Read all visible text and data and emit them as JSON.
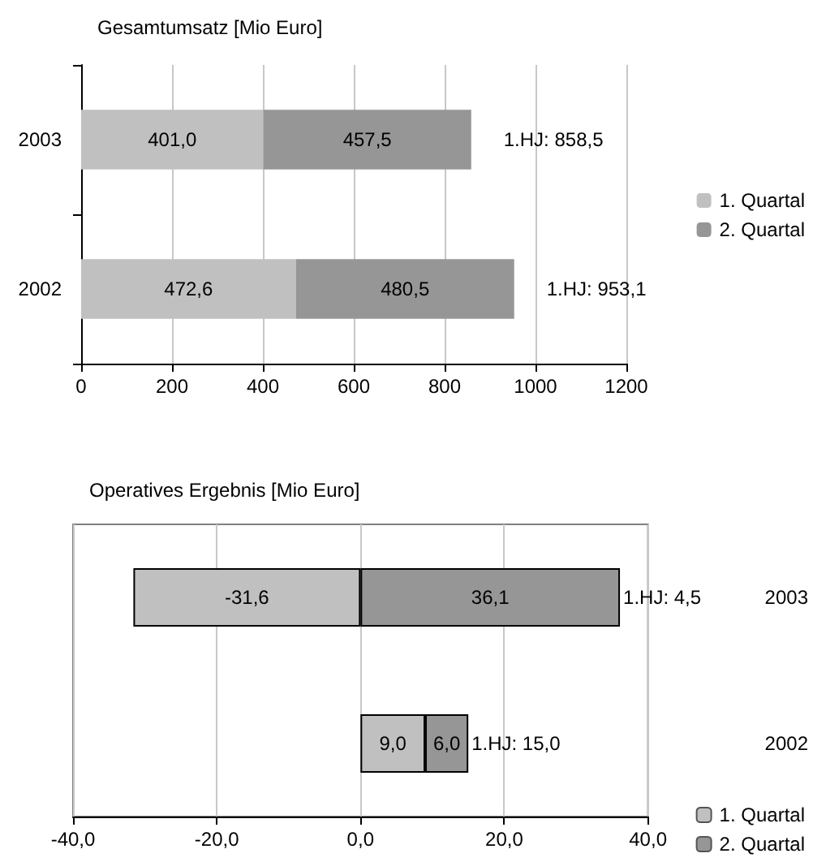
{
  "chart_data": [
    {
      "type": "bar",
      "orientation": "horizontal",
      "stacked": true,
      "title": "Gesamtumsatz [Mio Euro]",
      "categories": [
        "2003",
        "2002"
      ],
      "series": [
        {
          "name": "1. Quartal",
          "color": "#c0c0c0",
          "values": [
            401.0,
            472.6
          ],
          "value_labels": [
            "401,0",
            "472,6"
          ]
        },
        {
          "name": "2. Quartal",
          "color": "#969696",
          "values": [
            457.5,
            480.5
          ],
          "value_labels": [
            "457,5",
            "480,5"
          ]
        }
      ],
      "totals": [
        "1.HJ: 858,5",
        "1.HJ: 953,1"
      ],
      "xlim": [
        0,
        1200
      ],
      "xticks": [
        0,
        200,
        400,
        600,
        800,
        1000,
        1200
      ],
      "grid": "x",
      "legend": "right"
    },
    {
      "type": "bar",
      "orientation": "horizontal",
      "stacked": true,
      "title": "Operatives Ergebnis [Mio Euro]",
      "categories": [
        "2003",
        "2002"
      ],
      "series": [
        {
          "name": "1. Quartal",
          "color": "#c0c0c0",
          "values": [
            -31.6,
            9.0
          ],
          "value_labels": [
            "-31,6",
            "9,0"
          ]
        },
        {
          "name": "2. Quartal",
          "color": "#969696",
          "values": [
            36.1,
            6.0
          ],
          "value_labels": [
            "36,1",
            "6,0"
          ]
        }
      ],
      "totals": [
        "1.HJ: 4,5",
        "1.HJ: 15,0"
      ],
      "xlim": [
        -40,
        40
      ],
      "xticks": [
        {
          "value": -40,
          "label": "-40,0"
        },
        {
          "value": -20,
          "label": "-20,0"
        },
        {
          "value": 0,
          "label": "0,0"
        },
        {
          "value": 20,
          "label": "20,0"
        },
        {
          "value": 40,
          "label": "40,0"
        }
      ],
      "grid": "x",
      "legend": "bottom right"
    }
  ]
}
